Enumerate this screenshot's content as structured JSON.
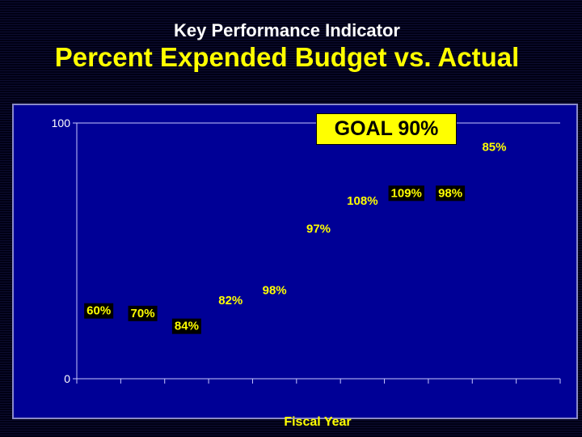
{
  "titles": {
    "top": "Key Performance Indicator",
    "main": "Percent Expended Budget vs. Actual"
  },
  "goal_label": "GOAL 90%",
  "colors": {
    "title_top": "#ffffff",
    "title_main": "#ffff00",
    "panel": "#000096",
    "label_text": "#ffff00",
    "label_box": "#000000",
    "goal_box": "#ffff00"
  },
  "chart_data": {
    "type": "scatter",
    "title": "Percent Expended Budget vs. Actual",
    "xlabel": "Fiscal Year",
    "ylabel": "",
    "ylim": [
      0,
      100
    ],
    "yticks": [
      0,
      100
    ],
    "grid": false,
    "categories": [
      "",
      "",
      "",
      "",
      "",
      "",
      "",
      "",
      "",
      "",
      ""
    ],
    "points": [
      {
        "y": 27,
        "label": "60%",
        "boxed": true
      },
      {
        "y": 26,
        "label": "70%",
        "boxed": true
      },
      {
        "y": 21,
        "label": "84%",
        "boxed": true
      },
      {
        "y": 31,
        "label": "82%",
        "boxed": false
      },
      {
        "y": 35,
        "label": "98%",
        "boxed": false
      },
      {
        "y": 59,
        "label": "97%",
        "boxed": false
      },
      {
        "y": 70,
        "label": "108%",
        "boxed": false
      },
      {
        "y": 73,
        "label": "109%",
        "boxed": true
      },
      {
        "y": 73,
        "label": "98%",
        "boxed": true
      },
      {
        "y": 91,
        "label": "85%",
        "boxed": false
      }
    ]
  }
}
